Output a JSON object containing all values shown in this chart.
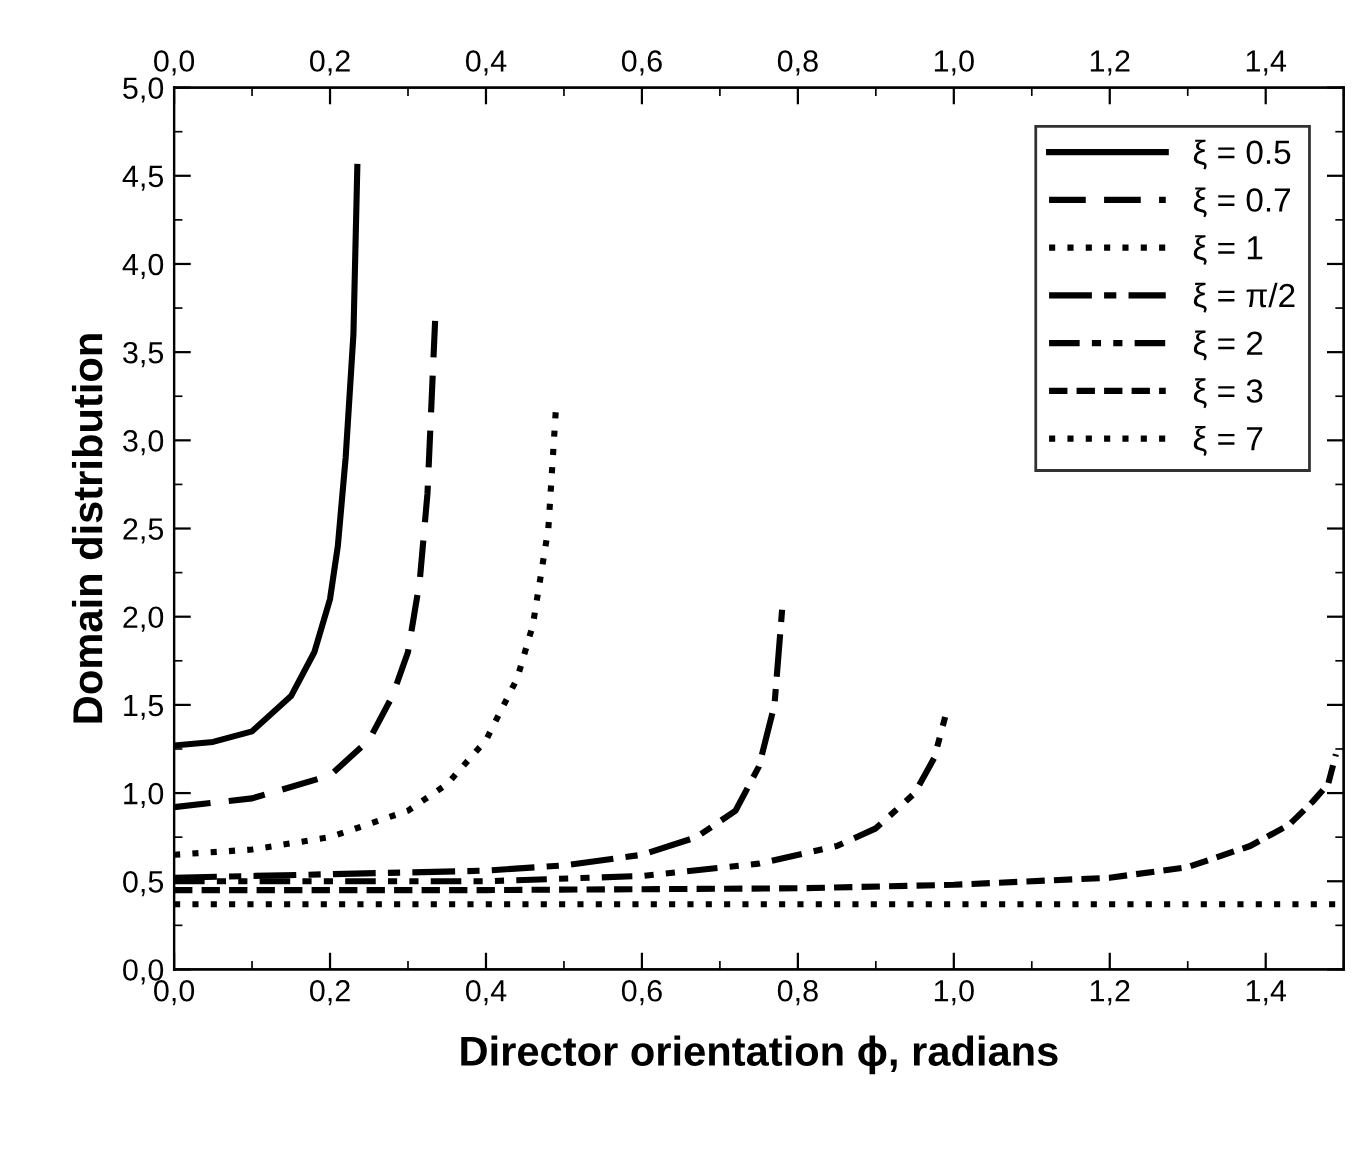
{
  "chart_data": {
    "type": "line",
    "xlabel": "Director orientation ϕ, radians",
    "ylabel": "Domain distribution",
    "xlim": [
      0,
      1.5
    ],
    "ylim": [
      0,
      5
    ],
    "xticks": [
      {
        "value": 0,
        "label": "0,0"
      },
      {
        "value": 0.2,
        "label": "0,2"
      },
      {
        "value": 0.4,
        "label": "0,4"
      },
      {
        "value": 0.6,
        "label": "0,6"
      },
      {
        "value": 0.8,
        "label": "0,8"
      },
      {
        "value": 1.0,
        "label": "1,0"
      },
      {
        "value": 1.2,
        "label": "1,2"
      },
      {
        "value": 1.4,
        "label": "1,4"
      }
    ],
    "x2lim": [
      0,
      1.5
    ],
    "x2ticks": [
      {
        "value": 0,
        "label": "0,0"
      },
      {
        "value": 0.2,
        "label": "0,2"
      },
      {
        "value": 0.4,
        "label": "0,4"
      },
      {
        "value": 0.6,
        "label": "0,6"
      },
      {
        "value": 0.8,
        "label": "0,8"
      },
      {
        "value": 1.0,
        "label": "1,0"
      },
      {
        "value": 1.2,
        "label": "1,2"
      },
      {
        "value": 1.4,
        "label": "1,4"
      }
    ],
    "yticks": [
      {
        "value": 0,
        "label": "0,0"
      },
      {
        "value": 0.5,
        "label": "0,5"
      },
      {
        "value": 1.0,
        "label": "1,0"
      },
      {
        "value": 1.5,
        "label": "1,5"
      },
      {
        "value": 2.0,
        "label": "2,0"
      },
      {
        "value": 2.5,
        "label": "2,5"
      },
      {
        "value": 3.0,
        "label": "3,0"
      },
      {
        "value": 3.5,
        "label": "3,5"
      },
      {
        "value": 4.0,
        "label": "4,0"
      },
      {
        "value": 4.5,
        "label": "4,5"
      },
      {
        "value": 5.0,
        "label": "5,0"
      }
    ],
    "legend": "top right",
    "grid": false,
    "series": [
      {
        "name": "ξ = 0.5",
        "color": "#000000",
        "line_style": "solid",
        "x": [
          0,
          0.05,
          0.1,
          0.15,
          0.18,
          0.2,
          0.21,
          0.22,
          0.23,
          0.235
        ],
        "values": [
          1.27,
          1.29,
          1.35,
          1.55,
          1.8,
          2.1,
          2.4,
          2.9,
          3.6,
          4.55
        ]
      },
      {
        "name": "ξ = 0.7",
        "color": "#000000",
        "line_style": "dashed",
        "x": [
          0,
          0.1,
          0.2,
          0.25,
          0.28,
          0.3,
          0.315,
          0.325,
          0.335
        ],
        "values": [
          0.92,
          0.97,
          1.1,
          1.3,
          1.55,
          1.8,
          2.2,
          2.7,
          3.7
        ]
      },
      {
        "name": "ξ = 1",
        "color": "#000000",
        "line_style": "dotted",
        "x": [
          0,
          0.1,
          0.2,
          0.3,
          0.35,
          0.4,
          0.44,
          0.46,
          0.48,
          0.49
        ],
        "values": [
          0.65,
          0.68,
          0.75,
          0.9,
          1.05,
          1.3,
          1.65,
          1.95,
          2.5,
          3.2
        ]
      },
      {
        "name": "ξ = π/2",
        "color": "#000000",
        "line_style": "dashdot",
        "x": [
          0,
          0.2,
          0.4,
          0.5,
          0.6,
          0.67,
          0.72,
          0.75,
          0.77,
          0.78
        ],
        "values": [
          0.52,
          0.54,
          0.56,
          0.59,
          0.65,
          0.75,
          0.9,
          1.15,
          1.5,
          2.05
        ]
      },
      {
        "name": "ξ = 2",
        "color": "#000000",
        "line_style": "dashdotdot",
        "x": [
          0,
          0.2,
          0.4,
          0.6,
          0.75,
          0.85,
          0.9,
          0.95,
          0.975,
          0.99
        ],
        "values": [
          0.5,
          0.5,
          0.5,
          0.53,
          0.6,
          0.7,
          0.8,
          1.0,
          1.2,
          1.45
        ]
      },
      {
        "name": "ξ = 3",
        "color": "#000000",
        "line_style": "shortdash",
        "x": [
          0,
          0.4,
          0.8,
          1.0,
          1.2,
          1.3,
          1.38,
          1.43,
          1.46,
          1.48,
          1.49
        ],
        "values": [
          0.45,
          0.45,
          0.46,
          0.48,
          0.52,
          0.58,
          0.7,
          0.82,
          0.95,
          1.05,
          1.22
        ]
      },
      {
        "name": "ξ = 7",
        "color": "#000000",
        "line_style": "dotted",
        "x": [
          0,
          0.5,
          1.0,
          1.5
        ],
        "values": [
          0.37,
          0.37,
          0.37,
          0.37
        ]
      }
    ]
  }
}
